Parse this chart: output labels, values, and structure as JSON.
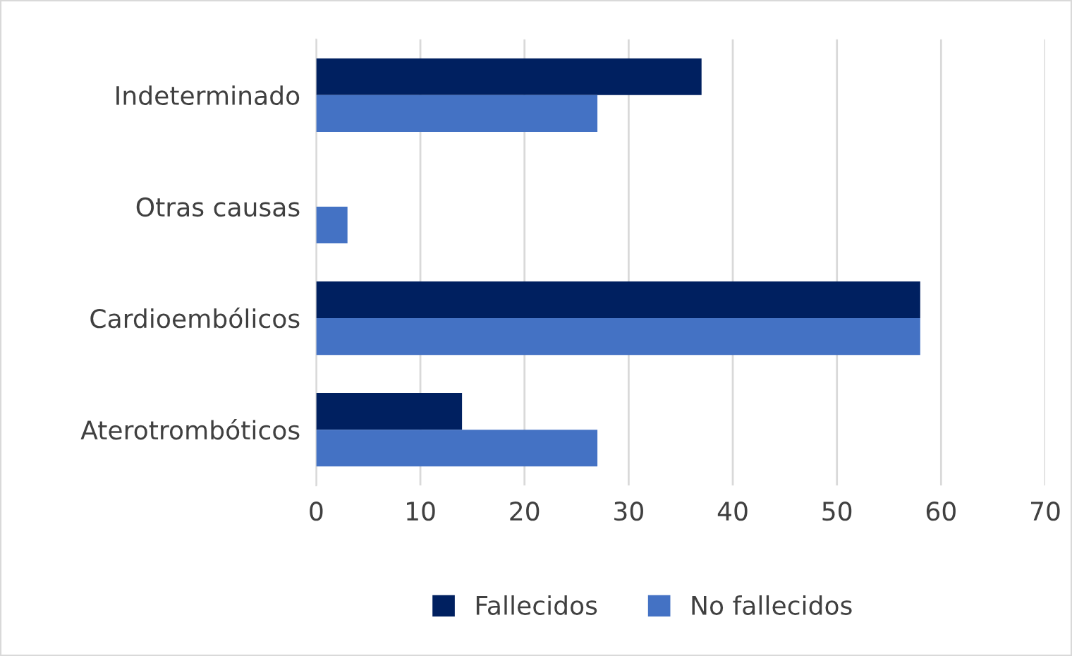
{
  "chart_data": {
    "type": "bar",
    "orientation": "horizontal",
    "categories": [
      "Indeterminado",
      "Otras causas",
      "Cardioembólicos",
      "Aterotrombóticos"
    ],
    "series": [
      {
        "name": "Fallecidos",
        "color": "#002060",
        "values": [
          37,
          0,
          58,
          14
        ]
      },
      {
        "name": "No fallecidos",
        "color": "#4472c4",
        "values": [
          27,
          3,
          58,
          27
        ]
      }
    ],
    "xlim": [
      0,
      70
    ],
    "xticks": [
      0,
      10,
      20,
      30,
      40,
      50,
      60,
      70
    ],
    "grid": "x",
    "legend": "bottom"
  }
}
